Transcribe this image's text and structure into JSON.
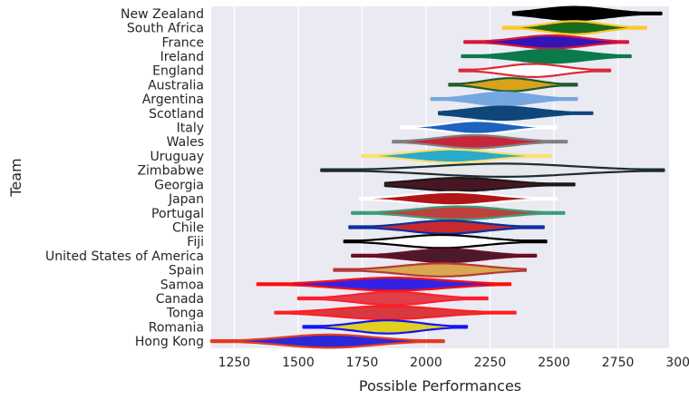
{
  "chart_data": {
    "type": "violin",
    "title": "",
    "xlabel": "Possible Performances",
    "ylabel": "Team",
    "xlim": [
      1160,
      2950
    ],
    "xticks": [
      1250,
      1500,
      1750,
      2000,
      2250,
      2500,
      2750,
      3000
    ],
    "grid": "vertical",
    "background": "#EAEAF2",
    "categories": [
      "New Zealand",
      "South Africa",
      "France",
      "Ireland",
      "England",
      "Australia",
      "Argentina",
      "Scotland",
      "Italy",
      "Wales",
      "Uruguay",
      "Zimbabwe",
      "Georgia",
      "Japan",
      "Portugal",
      "Chile",
      "Fiji",
      "United States of America",
      "Spain",
      "Samoa",
      "Canada",
      "Tonga",
      "Romania",
      "Hong Kong"
    ],
    "series": [
      {
        "category": "New Zealand",
        "min": 2340,
        "center": 2580,
        "max": 2920,
        "fill": "#000000",
        "edge": "#000000"
      },
      {
        "category": "South Africa",
        "min": 2300,
        "center": 2580,
        "max": 2860,
        "fill": "#1C6B1C",
        "edge": "#FFC726"
      },
      {
        "category": "France",
        "min": 2150,
        "center": 2490,
        "max": 2790,
        "fill": "#3314B8",
        "edge": "#D8143A"
      },
      {
        "category": "Ireland",
        "min": 2140,
        "center": 2490,
        "max": 2800,
        "fill": "#0B7A4B",
        "edge": "#0B7A4B"
      },
      {
        "category": "England",
        "min": 2130,
        "center": 2420,
        "max": 2720,
        "fill": "#FFFFFF",
        "edge": "#DC2A36"
      },
      {
        "category": "Australia",
        "min": 2090,
        "center": 2330,
        "max": 2590,
        "fill": "#D9A21B",
        "edge": "#1E5B2E"
      },
      {
        "category": "Argentina",
        "min": 2020,
        "center": 2300,
        "max": 2590,
        "fill": "#75A7E0",
        "edge": "#75A7E0"
      },
      {
        "category": "Scotland",
        "min": 2050,
        "center": 2300,
        "max": 2650,
        "fill": "#0F467A",
        "edge": "#0F467A"
      },
      {
        "category": "Italy",
        "min": 1900,
        "center": 2200,
        "max": 2510,
        "fill": "#1E62C0",
        "edge": "#FFFFFF"
      },
      {
        "category": "Wales",
        "min": 1870,
        "center": 2190,
        "max": 2550,
        "fill": "#C8253A",
        "edge": "#808080"
      },
      {
        "category": "Uruguay",
        "min": 1750,
        "center": 2100,
        "max": 2490,
        "fill": "#2AABC9",
        "edge": "#FFE070"
      },
      {
        "category": "Zimbabwe",
        "min": 1590,
        "center": 2300,
        "max": 2930,
        "fill": "#E8E8EC",
        "edge": "#1C2E30"
      },
      {
        "category": "Georgia",
        "min": 1840,
        "center": 2130,
        "max": 2580,
        "fill": "#4A1522",
        "edge": "#1A1A1A"
      },
      {
        "category": "Japan",
        "min": 1740,
        "center": 2100,
        "max": 2510,
        "fill": "#B01518",
        "edge": "#FFFFFF"
      },
      {
        "category": "Portugal",
        "min": 1710,
        "center": 2130,
        "max": 2540,
        "fill": "#C0403E",
        "edge": "#3A9E78"
      },
      {
        "category": "Chile",
        "min": 1700,
        "center": 2080,
        "max": 2460,
        "fill": "#C62A30",
        "edge": "#0A2FA0"
      },
      {
        "category": "Fiji",
        "min": 1680,
        "center": 2060,
        "max": 2470,
        "fill": "#FFFFFF",
        "edge": "#000000"
      },
      {
        "category": "United States of America",
        "min": 1710,
        "center": 2080,
        "max": 2430,
        "fill": "#4A1A2A",
        "edge": "#6A0E25"
      },
      {
        "category": "Spain",
        "min": 1640,
        "center": 2060,
        "max": 2390,
        "fill": "#D9A850",
        "edge": "#B53A38"
      },
      {
        "category": "Samoa",
        "min": 1340,
        "center": 1870,
        "max": 2330,
        "fill": "#3322E6",
        "edge": "#FF0D0D"
      },
      {
        "category": "Canada",
        "min": 1500,
        "center": 1870,
        "max": 2240,
        "fill": "#E0404A",
        "edge": "#FF1E2E"
      },
      {
        "category": "Tonga",
        "min": 1410,
        "center": 1850,
        "max": 2350,
        "fill": "#D63A40",
        "edge": "#FF1E1E"
      },
      {
        "category": "Romania",
        "min": 1520,
        "center": 1850,
        "max": 2160,
        "fill": "#E0D020",
        "edge": "#1414F5"
      },
      {
        "category": "Hong Kong",
        "min": 1160,
        "center": 1620,
        "max": 2070,
        "fill": "#2A28D8",
        "edge": "#E83A1E"
      }
    ]
  }
}
